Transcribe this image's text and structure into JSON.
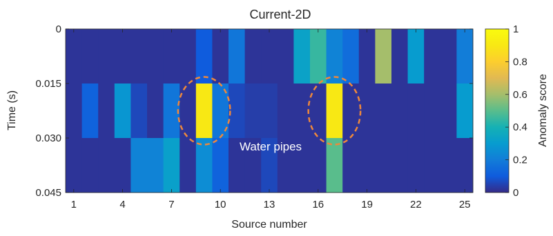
{
  "chart_data": {
    "type": "heatmap",
    "title": "Current-2D",
    "xlabel": "Source number",
    "ylabel": "Time (s)",
    "x_ticks": [
      "1",
      "4",
      "7",
      "10",
      "13",
      "16",
      "19",
      "22",
      "25"
    ],
    "y_ticks": [
      "0",
      "0.015",
      "0.030",
      "0.045"
    ],
    "x_range": [
      1,
      25
    ],
    "y_range": [
      0,
      0.045
    ],
    "rows": [
      "0–0.015",
      "0.015–0.030",
      "0.030–0.045"
    ],
    "columns": [
      1,
      2,
      3,
      4,
      5,
      6,
      7,
      8,
      9,
      10,
      11,
      12,
      13,
      14,
      15,
      16,
      17,
      18,
      19,
      20,
      21,
      22,
      23,
      24,
      25
    ],
    "values": [
      [
        0.02,
        0.02,
        0.02,
        0.02,
        0.02,
        0.02,
        0.02,
        0.02,
        0.1,
        0.02,
        0.18,
        0.02,
        0.02,
        0.02,
        0.33,
        0.45,
        0.22,
        0.15,
        0.02,
        0.6,
        0.02,
        0.3,
        0.02,
        0.02,
        0.2
      ],
      [
        0.02,
        0.12,
        0.02,
        0.28,
        0.06,
        0.02,
        0.18,
        0.02,
        0.9,
        0.18,
        0.06,
        0.04,
        0.04,
        0.02,
        0.02,
        0.02,
        0.9,
        0.02,
        0.02,
        0.02,
        0.02,
        0.02,
        0.02,
        0.02,
        0.3
      ],
      [
        0.02,
        0.02,
        0.02,
        0.02,
        0.22,
        0.22,
        0.32,
        0.02,
        0.25,
        0.12,
        0.02,
        0.02,
        0.06,
        0.02,
        0.02,
        0.02,
        0.5,
        0.02,
        0.02,
        0.02,
        0.02,
        0.02,
        0.02,
        0.02,
        0.02
      ]
    ],
    "colorbar": {
      "label": "Anomaly score",
      "ticks": [
        "0",
        "0.2",
        "0.4",
        "0.6",
        "0.8",
        "1"
      ],
      "range": [
        0,
        1
      ],
      "colormap": "parula"
    },
    "annotations": [
      {
        "text": "Water pipes",
        "color": "#ffffff"
      }
    ],
    "highlight_columns": [
      9,
      17
    ],
    "highlight_row": 1,
    "highlight_color": "#f0883a",
    "grid": false,
    "legend": "none"
  }
}
